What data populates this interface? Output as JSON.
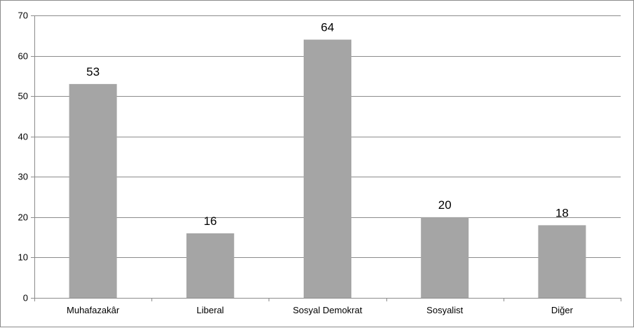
{
  "chart_data": {
    "type": "bar",
    "categories": [
      "Muhafazakâr",
      "Liberal",
      "Sosyal Demokrat",
      "Sosyalist",
      "Diğer"
    ],
    "values": [
      53,
      16,
      64,
      20,
      18
    ],
    "data_labels": [
      "53",
      "16",
      "64",
      "20",
      "18"
    ],
    "title": "",
    "xlabel": "",
    "ylabel": "",
    "ylim": [
      0,
      70
    ],
    "yticks": [
      0,
      10,
      20,
      30,
      40,
      50,
      60,
      70
    ],
    "ytick_labels": [
      "0",
      "10",
      "20",
      "30",
      "40",
      "50",
      "60",
      "70"
    ],
    "grid": true,
    "legend": "none",
    "colors": {
      "bar": "#a5a5a5",
      "grid": "#8c8c8c",
      "axis": "#8c8c8c",
      "text": "#000000"
    }
  }
}
